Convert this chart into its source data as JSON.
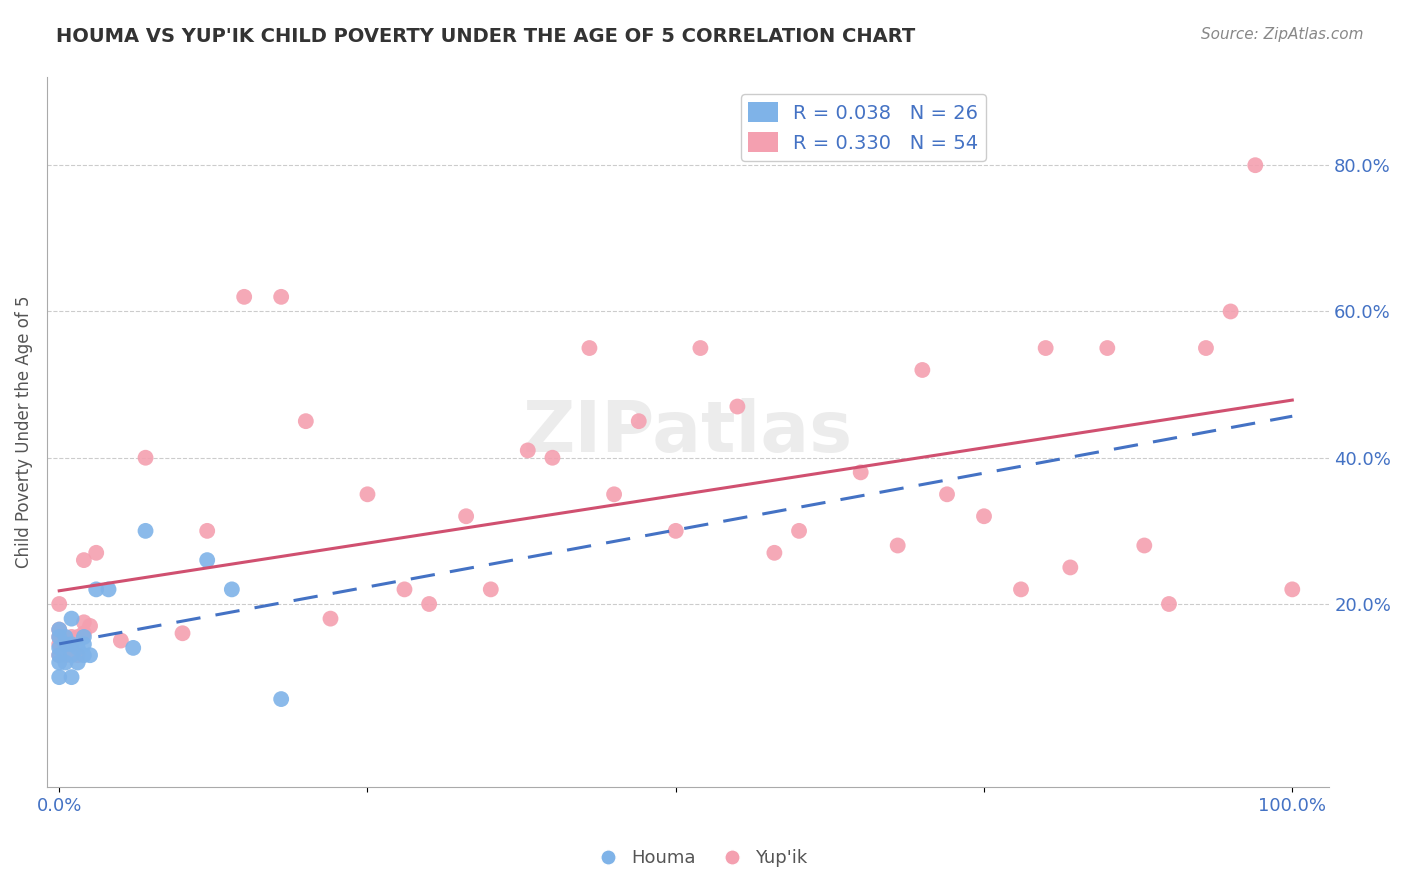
{
  "title": "HOUMA VS YUP'IK CHILD POVERTY UNDER THE AGE OF 5 CORRELATION CHART",
  "source": "Source: ZipAtlas.com",
  "ylabel": "Child Poverty Under the Age of 5",
  "houma_color": "#7fb3e8",
  "yupik_color": "#f4a0b0",
  "houma_line_color": "#4472c4",
  "yupik_line_color": "#d05070",
  "houma_R": 0.038,
  "houma_N": 26,
  "yupik_R": 0.33,
  "yupik_N": 54,
  "legend_label_houma": "Houma",
  "legend_label_yupik": "Yup'ik",
  "ytick_values": [
    0.2,
    0.4,
    0.6,
    0.8
  ],
  "ytick_labels": [
    "20.0%",
    "40.0%",
    "60.0%",
    "80.0%"
  ],
  "houma_x": [
    0.0,
    0.0,
    0.0,
    0.0,
    0.0,
    0.0,
    0.005,
    0.005,
    0.005,
    0.01,
    0.01,
    0.01,
    0.01,
    0.015,
    0.015,
    0.02,
    0.02,
    0.02,
    0.025,
    0.03,
    0.04,
    0.06,
    0.07,
    0.12,
    0.14,
    0.18
  ],
  "houma_y": [
    0.1,
    0.12,
    0.13,
    0.14,
    0.155,
    0.165,
    0.12,
    0.145,
    0.155,
    0.1,
    0.13,
    0.145,
    0.18,
    0.12,
    0.14,
    0.13,
    0.145,
    0.155,
    0.13,
    0.22,
    0.22,
    0.14,
    0.3,
    0.26,
    0.22,
    0.07
  ],
  "yupik_x": [
    0.0,
    0.0,
    0.0,
    0.0,
    0.0,
    0.005,
    0.005,
    0.01,
    0.01,
    0.015,
    0.015,
    0.02,
    0.02,
    0.02,
    0.025,
    0.03,
    0.05,
    0.07,
    0.1,
    0.12,
    0.15,
    0.18,
    0.2,
    0.22,
    0.25,
    0.28,
    0.3,
    0.33,
    0.35,
    0.38,
    0.4,
    0.43,
    0.45,
    0.47,
    0.5,
    0.52,
    0.55,
    0.58,
    0.6,
    0.65,
    0.68,
    0.7,
    0.72,
    0.75,
    0.78,
    0.8,
    0.82,
    0.85,
    0.88,
    0.9,
    0.93,
    0.95,
    0.97,
    1.0
  ],
  "yupik_y": [
    0.13,
    0.145,
    0.155,
    0.165,
    0.2,
    0.13,
    0.15,
    0.14,
    0.155,
    0.13,
    0.155,
    0.16,
    0.175,
    0.26,
    0.17,
    0.27,
    0.15,
    0.4,
    0.16,
    0.3,
    0.62,
    0.62,
    0.45,
    0.18,
    0.35,
    0.22,
    0.2,
    0.32,
    0.22,
    0.41,
    0.4,
    0.55,
    0.35,
    0.45,
    0.3,
    0.55,
    0.47,
    0.27,
    0.3,
    0.38,
    0.28,
    0.52,
    0.35,
    0.32,
    0.22,
    0.55,
    0.25,
    0.55,
    0.28,
    0.2,
    0.55,
    0.6,
    0.8,
    0.22
  ]
}
